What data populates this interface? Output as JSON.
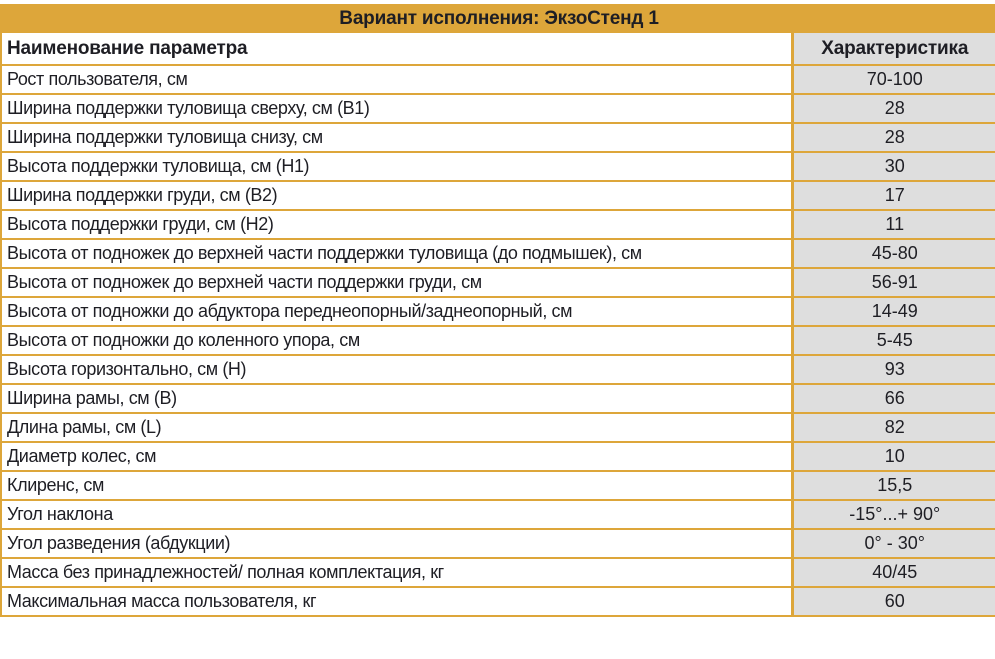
{
  "table": {
    "title": "Вариант исполнения: ЭкзоСтенд 1",
    "columns": {
      "parameter": "Наименование параметра",
      "value": "Характеристика"
    },
    "rows": [
      {
        "name": "Рост пользователя, см",
        "value": "70-100"
      },
      {
        "name": "Ширина поддержки туловища сверху, см (B1)",
        "value": "28"
      },
      {
        "name": "Ширина поддержки туловища снизу, см",
        "value": "28"
      },
      {
        "name": "Высота поддержки туловища, см (H1)",
        "value": "30"
      },
      {
        "name": "Ширина поддержки груди, см (B2)",
        "value": "17"
      },
      {
        "name": "Высота поддержки груди, см (H2)",
        "value": "11"
      },
      {
        "name": "Высота от подножек до верхней части поддержки туловища (до подмышек), см",
        "value": "45-80"
      },
      {
        "name": "Высота от подножек до верхней части поддержки груди, см",
        "value": "56-91"
      },
      {
        "name": "Высота от подножки до абдуктора переднеопорный/заднеопорный, см",
        "value": "14-49"
      },
      {
        "name": "Высота от подножки до коленного упора, см",
        "value": "5-45"
      },
      {
        "name": "Высота горизонтально, см (H)",
        "value": "93"
      },
      {
        "name": "Ширина рамы, см (B)",
        "value": "66"
      },
      {
        "name": "Длина рамы, см (L)",
        "value": "82"
      },
      {
        "name": "Диаметр колес, см",
        "value": "10"
      },
      {
        "name": "Клиренс, см",
        "value": "15,5"
      },
      {
        "name": "Угол наклона",
        "value": "-15°...+ 90°"
      },
      {
        "name": "Угол разведения (абдукции)",
        "value": "0° - 30°"
      },
      {
        "name": "Масса без принадлежностей/ полная комплектация, кг",
        "value": "40/45"
      },
      {
        "name": "Максимальная масса пользователя, кг",
        "value": "60"
      }
    ]
  },
  "colors": {
    "gold": "#dda63a",
    "value_bg": "#dedede",
    "text": "#1e1e24"
  }
}
